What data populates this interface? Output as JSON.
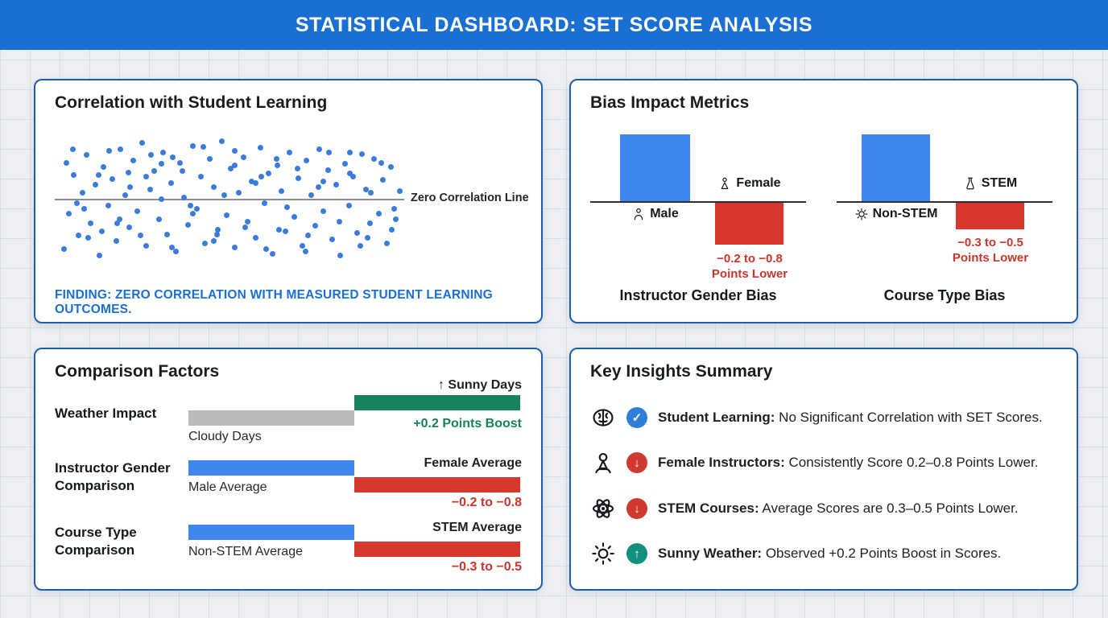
{
  "header": {
    "title": "STATISTICAL DASHBOARD: SET SCORE ANALYSIS"
  },
  "colors": {
    "header_blue": "#1a6fd2",
    "card_border": "#1d5fa6",
    "bar_blue": "#3f86ef",
    "bar_red": "#d6382e",
    "bar_green": "#16825f",
    "bar_gray": "#b9babc",
    "finding_blue": "#1a6fd2",
    "note_red": "#c9362c",
    "badge_blue": "#2e7fd6",
    "badge_red": "#d0392f",
    "badge_teal": "#13907d"
  },
  "panels": {
    "correlation": {
      "title": "Correlation with Student Learning",
      "line_label": "Zero Correlation Line",
      "finding": "FINDING: ZERO CORRELATION WITH MEASURED STUDENT LEARNING OUTCOMES."
    },
    "bias": {
      "title": "Bias Impact Metrics",
      "groups": [
        {
          "up_label": "Male",
          "down_label": "Female",
          "note1": "−0.2 to −0.8",
          "note2": "Points Lower",
          "caption": "Instructor Gender Bias"
        },
        {
          "up_label": "Non-STEM",
          "down_label": "STEM",
          "note1": "−0.3 to −0.5",
          "note2": "Points Lower",
          "caption": "Course Type Bias"
        }
      ]
    },
    "comparison": {
      "title": "Comparison Factors",
      "rows": [
        {
          "label": "Weather Impact",
          "top_label": "↑ Sunny Days",
          "bottom_label": "Cloudy Days",
          "value": "+0.2 Points Boost"
        },
        {
          "label": "Instructor Gender\nComparison",
          "top_label": "Female Average",
          "bottom_label": "Male Average",
          "value": "−0.2 to −0.8"
        },
        {
          "label": "Course Type\nComparison",
          "top_label": "STEM Average",
          "bottom_label": "Non-STEM Average",
          "value": "−0.3 to −0.5"
        }
      ]
    },
    "insights": {
      "title": "Key Insights Summary",
      "items": [
        {
          "icon": "brain-icon",
          "badge_glyph": "✓",
          "lead": "Student Learning:",
          "text": " No Significant Correlation with SET Scores."
        },
        {
          "icon": "person-icon",
          "badge_glyph": "↓",
          "lead": "Female Instructors:",
          "text": " Consistently Score 0.2–0.8 Points Lower."
        },
        {
          "icon": "atom-icon",
          "badge_glyph": "↓",
          "lead": "STEM Courses:",
          "text": " Average Scores are 0.3–0.5 Points Lower."
        },
        {
          "icon": "sun-icon",
          "badge_glyph": "↑",
          "lead": "Sunny Weather:",
          "text": " Observed +0.2 Points Boost in Scores."
        }
      ]
    }
  },
  "chart_data": [
    {
      "type": "scatter",
      "title": "Correlation with Student Learning",
      "annotation": "Zero Correlation Line",
      "correlation": 0,
      "x_range": [
        0,
        430
      ],
      "y_range": [
        -80,
        80
      ],
      "points": [
        [
          8,
          -62
        ],
        [
          14,
          -18
        ],
        [
          20,
          30
        ],
        [
          26,
          -45
        ],
        [
          31,
          8
        ],
        [
          36,
          55
        ],
        [
          41,
          -30
        ],
        [
          47,
          18
        ],
        [
          52,
          -70
        ],
        [
          57,
          40
        ],
        [
          63,
          -8
        ],
        [
          68,
          25
        ],
        [
          73,
          -52
        ],
        [
          78,
          62
        ],
        [
          84,
          5
        ],
        [
          89,
          -35
        ],
        [
          94,
          48
        ],
        [
          99,
          -15
        ],
        [
          105,
          70
        ],
        [
          110,
          -58
        ],
        [
          115,
          12
        ],
        [
          120,
          35
        ],
        [
          126,
          -25
        ],
        [
          131,
          58
        ],
        [
          136,
          -44
        ],
        [
          141,
          20
        ],
        [
          147,
          -65
        ],
        [
          152,
          45
        ],
        [
          157,
          2
        ],
        [
          162,
          -32
        ],
        [
          168,
          66
        ],
        [
          173,
          -12
        ],
        [
          178,
          28
        ],
        [
          183,
          -55
        ],
        [
          189,
          50
        ],
        [
          194,
          15
        ],
        [
          199,
          -38
        ],
        [
          204,
          72
        ],
        [
          210,
          -20
        ],
        [
          215,
          38
        ],
        [
          220,
          -60
        ],
        [
          225,
          8
        ],
        [
          231,
          52
        ],
        [
          236,
          -28
        ],
        [
          241,
          22
        ],
        [
          246,
          -48
        ],
        [
          252,
          64
        ],
        [
          257,
          -5
        ],
        [
          262,
          32
        ],
        [
          267,
          -68
        ],
        [
          273,
          42
        ],
        [
          278,
          10
        ],
        [
          283,
          -40
        ],
        [
          288,
          58
        ],
        [
          294,
          -22
        ],
        [
          299,
          26
        ],
        [
          304,
          -58
        ],
        [
          309,
          48
        ],
        [
          315,
          5
        ],
        [
          320,
          -33
        ],
        [
          325,
          62
        ],
        [
          330,
          -15
        ],
        [
          336,
          36
        ],
        [
          341,
          -50
        ],
        [
          346,
          18
        ],
        [
          351,
          -70
        ],
        [
          357,
          44
        ],
        [
          362,
          -8
        ],
        [
          367,
          28
        ],
        [
          372,
          -42
        ],
        [
          378,
          56
        ],
        [
          383,
          12
        ],
        [
          388,
          -30
        ],
        [
          393,
          50
        ],
        [
          399,
          -18
        ],
        [
          404,
          24
        ],
        [
          409,
          -55
        ],
        [
          414,
          40
        ],
        [
          420,
          -25
        ],
        [
          425,
          10
        ],
        [
          11,
          45
        ],
        [
          24,
          -5
        ],
        [
          38,
          -48
        ],
        [
          51,
          30
        ],
        [
          64,
          60
        ],
        [
          77,
          -25
        ],
        [
          90,
          15
        ],
        [
          103,
          -45
        ],
        [
          116,
          55
        ],
        [
          129,
          0
        ],
        [
          142,
          -60
        ],
        [
          155,
          35
        ],
        [
          168,
          -18
        ],
        [
          181,
          65
        ],
        [
          194,
          -52
        ],
        [
          207,
          5
        ],
        [
          220,
          42
        ],
        [
          233,
          -35
        ],
        [
          246,
          20
        ],
        [
          259,
          -62
        ],
        [
          272,
          50
        ],
        [
          285,
          -10
        ],
        [
          298,
          38
        ],
        [
          311,
          -45
        ],
        [
          324,
          15
        ],
        [
          337,
          58
        ],
        [
          350,
          -28
        ],
        [
          363,
          32
        ],
        [
          376,
          -58
        ],
        [
          389,
          8
        ],
        [
          402,
          45
        ],
        [
          415,
          -38
        ],
        [
          33,
          -12
        ],
        [
          88,
          33
        ],
        [
          143,
          52
        ],
        [
          198,
          -44
        ],
        [
          253,
          28
        ],
        [
          308,
          -65
        ],
        [
          363,
          58
        ],
        [
          418,
          -12
        ],
        [
          55,
          -40
        ],
        [
          110,
          28
        ],
        [
          165,
          -8
        ],
        [
          220,
          60
        ],
        [
          275,
          -38
        ],
        [
          330,
          22
        ],
        [
          385,
          -48
        ],
        [
          19,
          62
        ],
        [
          74,
          -30
        ],
        [
          129,
          44
        ]
      ]
    },
    {
      "type": "bar",
      "title": "Instructor Gender Bias",
      "categories": [
        "Male",
        "Female"
      ],
      "values": [
        1,
        -0.6
      ],
      "note": "−0.2 to −0.8 Points Lower"
    },
    {
      "type": "bar",
      "title": "Course Type Bias",
      "categories": [
        "Non-STEM",
        "STEM"
      ],
      "values": [
        1,
        -0.4
      ],
      "note": "−0.3 to −0.5 Points Lower"
    },
    {
      "type": "bar",
      "title": "Comparison Factors",
      "rows": [
        {
          "factor": "Weather Impact",
          "bars": [
            "Cloudy Days",
            "Sunny Days"
          ],
          "delta": "+0.2 Points Boost"
        },
        {
          "factor": "Instructor Gender Comparison",
          "bars": [
            "Male Average",
            "Female Average"
          ],
          "delta": "−0.2 to −0.8"
        },
        {
          "factor": "Course Type Comparison",
          "bars": [
            "Non-STEM Average",
            "STEM Average"
          ],
          "delta": "−0.3 to −0.5"
        }
      ]
    }
  ]
}
